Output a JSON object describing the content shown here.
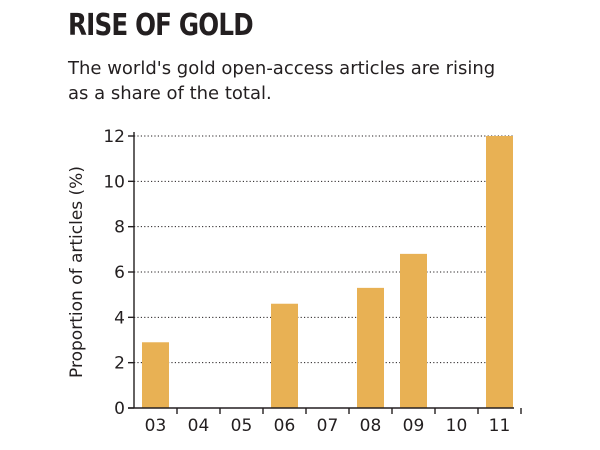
{
  "title": "RISE OF GOLD",
  "subtitle": "The world's gold open-access articles are rising as a share of the total.",
  "chart_data": {
    "type": "bar",
    "title": "RISE OF GOLD",
    "subtitle": "The world's gold open-access articles are rising as a share of the total.",
    "categories": [
      "03",
      "04",
      "05",
      "06",
      "07",
      "08",
      "09",
      "10",
      "11"
    ],
    "values": [
      2.9,
      null,
      null,
      4.6,
      null,
      5.3,
      6.8,
      null,
      12.0
    ],
    "xlabel": "",
    "ylabel": "Proportion of articles (%)",
    "ylim": [
      0,
      12
    ],
    "yticks": [
      0,
      2,
      4,
      6,
      8,
      10,
      12
    ],
    "grid": true,
    "legend": "none",
    "bar_color": "#e8b154",
    "grid_color": "#231f20"
  }
}
